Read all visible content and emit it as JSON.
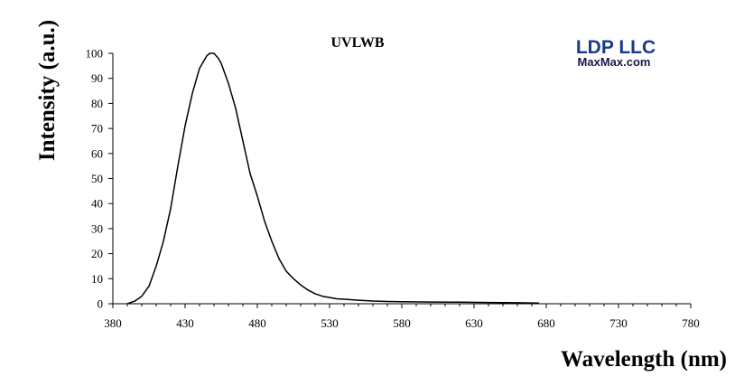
{
  "chart_data": {
    "type": "line",
    "title": "UVLWB",
    "xlabel": "Wavelength (nm)",
    "ylabel": "Intensity (a.u.)",
    "xlim": [
      380,
      780
    ],
    "ylim": [
      0,
      100
    ],
    "xticks": [
      380,
      430,
      480,
      530,
      580,
      630,
      680,
      730,
      780
    ],
    "yticks": [
      0,
      10,
      20,
      30,
      40,
      50,
      60,
      70,
      80,
      90,
      100
    ],
    "grid": false,
    "legend": "none",
    "line_color": "#000000",
    "x": [
      390,
      395,
      400,
      405,
      410,
      415,
      420,
      425,
      430,
      435,
      440,
      445,
      447,
      450,
      453,
      455,
      460,
      465,
      470,
      475,
      480,
      485,
      490,
      495,
      500,
      505,
      510,
      515,
      520,
      525,
      530,
      535,
      540,
      550,
      560,
      570,
      580,
      600,
      620,
      640,
      660,
      675
    ],
    "y": [
      0,
      1,
      3,
      7,
      15,
      25,
      38,
      55,
      71,
      84,
      94,
      99,
      100,
      100,
      98,
      96,
      88,
      78,
      65,
      52,
      43,
      33,
      25,
      18,
      13,
      10,
      7.5,
      5.5,
      4,
      3,
      2.5,
      2,
      1.8,
      1.4,
      1.1,
      0.9,
      0.8,
      0.7,
      0.6,
      0.5,
      0.4,
      0.3
    ]
  },
  "logo": {
    "name": "LDP LLC",
    "url_text": "MaxMax.com",
    "color_main": "#1a3a8c",
    "color_sub": "#1a1a4a"
  }
}
